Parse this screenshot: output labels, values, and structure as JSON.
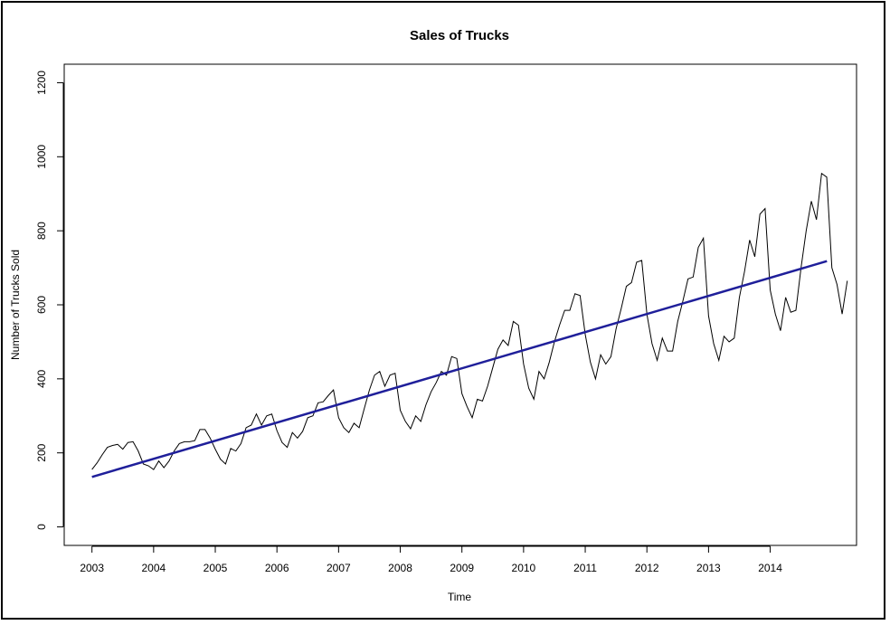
{
  "chart_data": {
    "type": "line",
    "title": "Sales of Trucks",
    "xlabel": "Time",
    "ylabel": "Number of Trucks Sold",
    "xlim": [
      2002.55,
      2015.4
    ],
    "ylim": [
      -50,
      1250
    ],
    "x_ticks": [
      "2003",
      "2004",
      "2005",
      "2006",
      "2007",
      "2008",
      "2009",
      "2010",
      "2011",
      "2012",
      "2013",
      "2014"
    ],
    "y_ticks": [
      "0",
      "200",
      "400",
      "600",
      "800",
      "1000",
      "1200"
    ],
    "grid": false,
    "series": [
      {
        "name": "",
        "color": "#000000",
        "start": 2003.0,
        "frequency": 12,
        "values": [
          155,
          173,
          195,
          215,
          220,
          223,
          210,
          228,
          230,
          205,
          170,
          165,
          155,
          178,
          160,
          178,
          205,
          225,
          230,
          230,
          233,
          263,
          263,
          240,
          210,
          183,
          170,
          212,
          205,
          225,
          268,
          275,
          305,
          275,
          300,
          305,
          260,
          228,
          215,
          255,
          240,
          258,
          295,
          300,
          335,
          338,
          355,
          370,
          295,
          268,
          255,
          280,
          268,
          320,
          370,
          410,
          420,
          380,
          410,
          415,
          315,
          285,
          265,
          300,
          285,
          330,
          365,
          390,
          420,
          410,
          460,
          455,
          360,
          325,
          295,
          345,
          340,
          380,
          430,
          480,
          505,
          490,
          555,
          545,
          440,
          375,
          345,
          420,
          400,
          445,
          500,
          545,
          585,
          585,
          630,
          625,
          520,
          445,
          400,
          465,
          440,
          460,
          535,
          590,
          650,
          660,
          715,
          720,
          575,
          495,
          450,
          510,
          475,
          475,
          555,
          610,
          670,
          675,
          755,
          780,
          570,
          495,
          450,
          515,
          500,
          510,
          620,
          690,
          775,
          730,
          845,
          860,
          640,
          575,
          530,
          620,
          580,
          585,
          700,
          800,
          880,
          830,
          955,
          945,
          700,
          655,
          575,
          665
        ]
      },
      {
        "name": "",
        "color": "#1f1f9a",
        "type": "trend",
        "x": [
          2003.0,
          2014.92
        ],
        "values": [
          135,
          718
        ]
      }
    ]
  }
}
